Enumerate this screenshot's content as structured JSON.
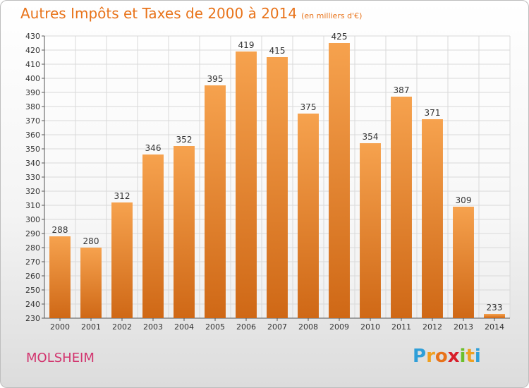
{
  "header": {
    "title": "Autres Impôts et Taxes de 2000 à 2014",
    "unit": "(en milliers d'€)"
  },
  "footer": {
    "city": "MOLSHEIM",
    "logo": {
      "text": "Proxiti",
      "letters": [
        {
          "ch": "P",
          "color": "#2f9fd8"
        },
        {
          "ch": "r",
          "color": "#f0a020"
        },
        {
          "ch": "o",
          "color": "#e8731a"
        },
        {
          "ch": "x",
          "color": "#d81e2a"
        },
        {
          "ch": "i",
          "color": "#6cbf2a"
        },
        {
          "ch": "t",
          "color": "#f0a020"
        },
        {
          "ch": "i",
          "color": "#2f9fd8"
        }
      ]
    }
  },
  "colors": {
    "accent": "#e8731a",
    "bar_top": "#f6a24e",
    "bar_bottom": "#cf6816",
    "grid": "#d9d9d9",
    "city": "#d2346e"
  },
  "chart_data": {
    "type": "bar",
    "title": "Autres Impôts et Taxes de 2000 à 2014",
    "subtitle": "(en milliers d'€)",
    "xlabel": "",
    "ylabel": "",
    "categories": [
      "2000",
      "2001",
      "2002",
      "2003",
      "2004",
      "2005",
      "2006",
      "2007",
      "2008",
      "2009",
      "2010",
      "2011",
      "2012",
      "2013",
      "2014"
    ],
    "values": [
      288,
      280,
      312,
      346,
      352,
      395,
      419,
      415,
      375,
      425,
      354,
      387,
      371,
      309,
      233
    ],
    "ylim": [
      230,
      430
    ],
    "yticks": [
      230,
      240,
      250,
      260,
      270,
      280,
      290,
      300,
      310,
      320,
      330,
      340,
      350,
      360,
      370,
      380,
      390,
      400,
      410,
      420,
      430
    ],
    "grid": true,
    "legend": "none"
  }
}
